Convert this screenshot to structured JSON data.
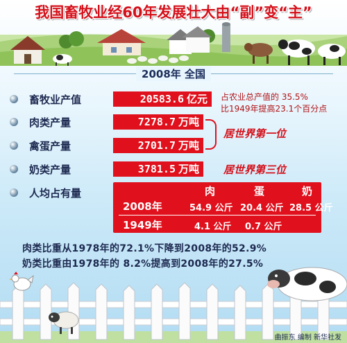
{
  "title": "我国畜牧业经60年发展壮大由“副”变“主”",
  "subtitle": "2008年 全国",
  "items": [
    {
      "label": "畜牧业产值",
      "value": "20583.6",
      "unit": "亿元"
    },
    {
      "label": "肉类产量",
      "value": "7278.7",
      "unit": "万吨"
    },
    {
      "label": "禽蛋产量",
      "value": "2701.7",
      "unit": "万吨"
    },
    {
      "label": "奶类产量",
      "value": "3781.5",
      "unit": "万吨"
    },
    {
      "label": "人均占有量"
    }
  ],
  "notes": {
    "line1": "占农业总产值的 35.5%",
    "line2": "比1949年提高23.1个百分点"
  },
  "ranks": {
    "first": "居世界第一位",
    "third": "居世界第三位"
  },
  "per_capita": {
    "headers": [
      "肉",
      "蛋",
      "奶"
    ],
    "rows": [
      {
        "year": "2008年",
        "meat": "54.9 公斤",
        "egg": "20.4 公斤",
        "milk": "28.5 公斤"
      },
      {
        "year": "1949年",
        "meat": "4.1 公斤",
        "egg": "0.7 公斤",
        "milk": ""
      }
    ]
  },
  "bottom": {
    "line1": "肉类比重从1978年的72.1%下降到2008年的52.9%",
    "line2": "奶类比重由1978年的 8.2%提高到2008年的27.5%"
  },
  "credit": "曲振东 编制 新华社发",
  "colors": {
    "accent_red": "#e0101c",
    "title_red": "#d4101a",
    "navy": "#1d2950"
  }
}
